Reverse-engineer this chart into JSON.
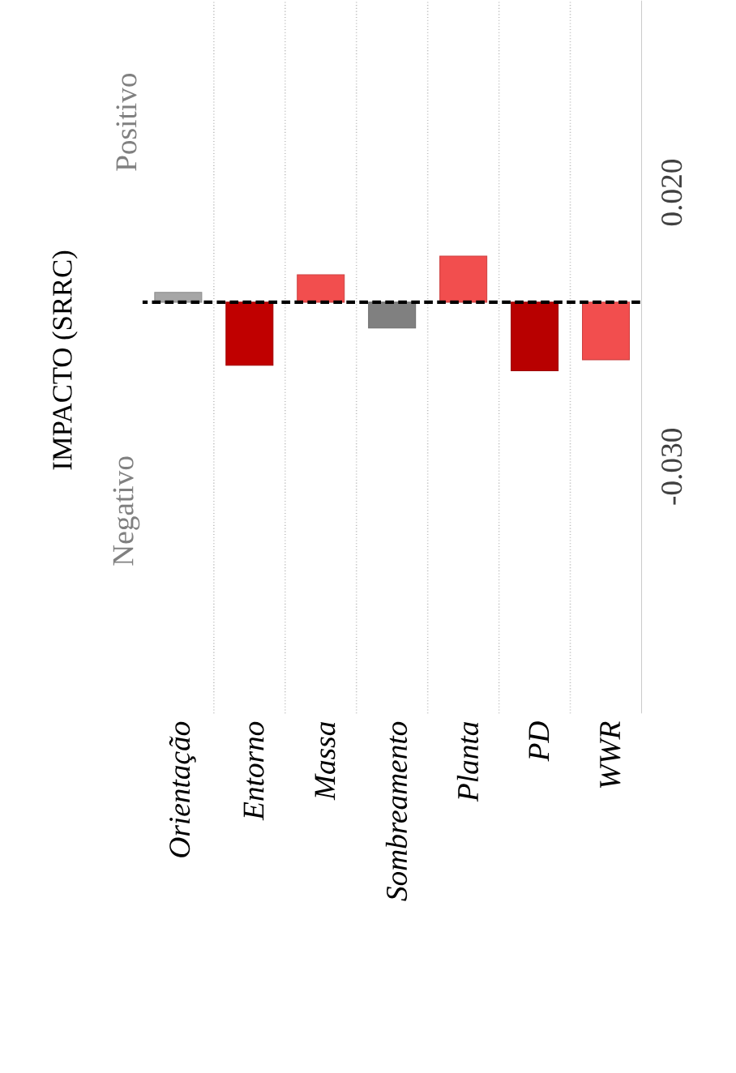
{
  "chart_data": {
    "type": "bar",
    "ylabel": "IMPACTO (SRRC)",
    "categories": [
      "Orientação",
      "Entorno",
      "Massa",
      "Sombreamento",
      "Planta",
      "PD",
      "WWR"
    ],
    "values": [
      0.0018,
      -0.0115,
      0.005,
      -0.0047,
      0.0084,
      -0.0125,
      -0.0105
    ],
    "colors": [
      "#a6a6a6",
      "#c00000",
      "#f24e4e",
      "#808080",
      "#f24e4e",
      "#b80000",
      "#f24e4e"
    ],
    "ylim": [
      -0.075,
      0.055
    ],
    "yticks": [
      {
        "value": 0.02,
        "label": "0.020"
      },
      {
        "value": -0.03,
        "label": "-0.030"
      }
    ],
    "grid": "x",
    "ref_lines": [
      {
        "axis": "y",
        "value": 0,
        "color": "#000000",
        "line_style": "dashed"
      }
    ],
    "annotations": [
      "Positivo",
      "Negativo"
    ]
  }
}
